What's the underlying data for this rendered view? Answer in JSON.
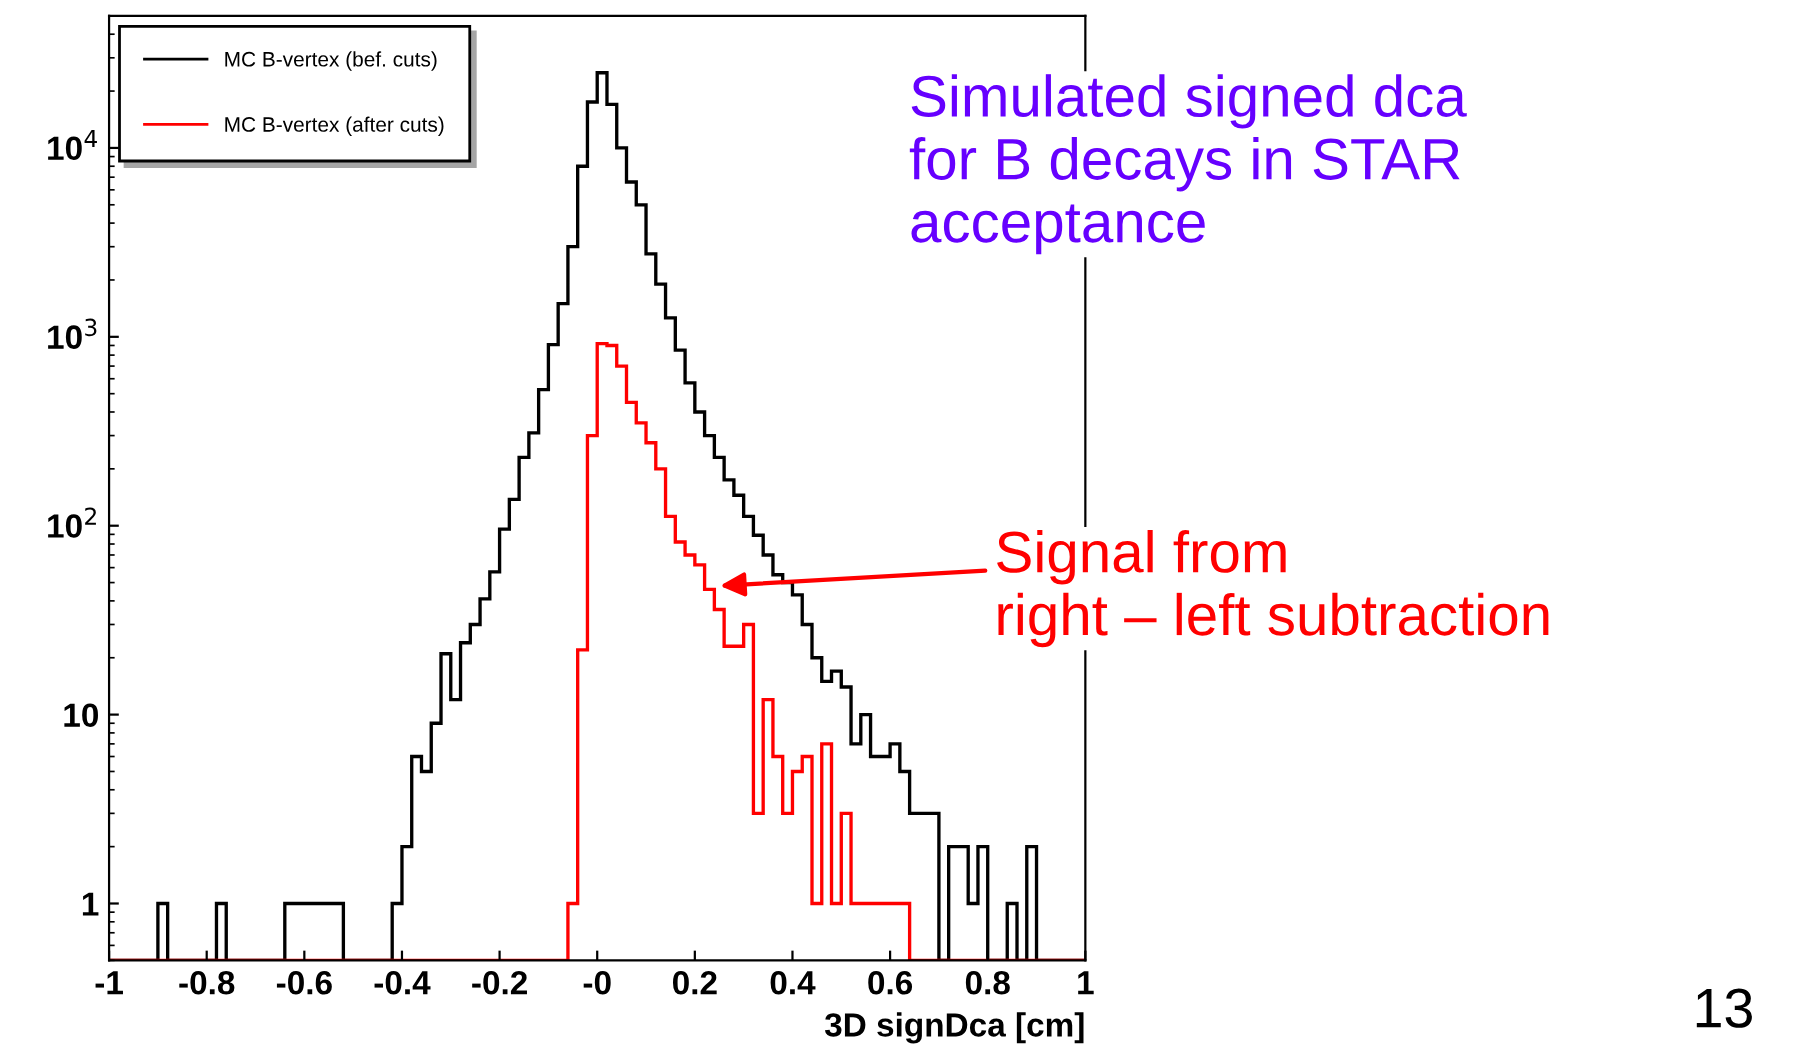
{
  "chart_data": {
    "type": "histogram",
    "xlabel": "3D signDca [cm]",
    "bins": [
      -1,
      -0.98,
      -0.96,
      -0.94,
      -0.92,
      -0.9,
      -0.88,
      -0.86,
      -0.84,
      -0.82,
      -0.8,
      -0.78,
      -0.76,
      -0.74,
      -0.72,
      -0.7,
      -0.68,
      -0.66,
      -0.64,
      -0.62,
      -0.6,
      -0.58,
      -0.56,
      -0.54,
      -0.52,
      -0.5,
      -0.48,
      -0.46,
      -0.44,
      -0.42,
      -0.4,
      -0.38,
      -0.36,
      -0.34,
      -0.32,
      -0.3,
      -0.28,
      -0.26,
      -0.24,
      -0.22,
      -0.2,
      -0.18,
      -0.16,
      -0.14,
      -0.12,
      -0.1,
      -0.08,
      -0.06,
      -0.04,
      -0.02,
      0,
      0.02,
      0.04,
      0.06,
      0.08,
      0.1,
      0.12,
      0.14,
      0.16,
      0.18,
      0.2,
      0.22,
      0.24,
      0.26,
      0.28,
      0.3,
      0.32,
      0.34,
      0.36,
      0.38,
      0.4,
      0.42,
      0.44,
      0.46,
      0.48,
      0.5,
      0.52,
      0.54,
      0.56,
      0.58,
      0.6,
      0.62,
      0.64,
      0.66,
      0.68,
      0.7,
      0.72,
      0.74,
      0.76,
      0.78,
      0.8,
      0.82,
      0.84,
      0.86,
      0.88,
      0.9,
      0.92,
      0.94,
      0.96,
      0.98,
      1
    ],
    "series": [
      {
        "name": "MC B-vertex (bef. cuts)",
        "color": "#000000",
        "values": [
          null,
          null,
          null,
          null,
          null,
          1,
          null,
          null,
          null,
          null,
          null,
          1,
          null,
          null,
          null,
          null,
          null,
          null,
          1,
          1,
          1,
          1,
          1,
          1,
          null,
          null,
          null,
          null,
          null,
          1,
          2,
          6,
          5,
          9,
          21,
          12,
          24,
          30,
          41,
          57,
          96,
          138,
          230,
          310,
          525,
          910,
          1500,
          3000,
          8000,
          17500,
          25000,
          17000,
          10000,
          6600,
          5000,
          2750,
          1900,
          1260,
          850,
          570,
          400,
          300,
          230,
          175,
          145,
          112,
          89,
          70,
          55,
          50,
          43,
          30,
          20,
          15,
          17,
          14,
          7,
          10,
          6,
          6,
          7,
          5,
          3,
          3,
          3,
          null,
          2,
          2,
          1,
          2,
          null,
          null,
          1,
          null,
          2,
          null,
          null,
          null,
          null,
          null
        ]
      },
      {
        "name": "MC B-vertex (after cuts)",
        "color": "#ff0000",
        "values": [
          null,
          null,
          null,
          null,
          null,
          null,
          null,
          null,
          null,
          null,
          null,
          null,
          null,
          null,
          null,
          null,
          null,
          null,
          null,
          null,
          null,
          null,
          null,
          null,
          null,
          null,
          null,
          null,
          null,
          null,
          null,
          null,
          null,
          null,
          null,
          null,
          null,
          null,
          null,
          null,
          null,
          null,
          null,
          null,
          null,
          null,
          null,
          1,
          22,
          300,
          920,
          900,
          700,
          450,
          350,
          275,
          200,
          112,
          82,
          70,
          62,
          46,
          36,
          23,
          23,
          30,
          3,
          12,
          6,
          3,
          5,
          6,
          1,
          7,
          1,
          3,
          1,
          1,
          1,
          1,
          1,
          1,
          null,
          null,
          null,
          null,
          null,
          null,
          null,
          null,
          null,
          null,
          null,
          null,
          null,
          null,
          null,
          null,
          null,
          null
        ]
      }
    ],
    "log": "y",
    "xlim": [
      -1,
      1
    ],
    "ylim": [
      0.5,
      50000
    ],
    "xticks": [
      -1,
      -0.8,
      -0.6,
      -0.4,
      -0.2,
      {
        "value": 0,
        "label": "-0"
      },
      0.2,
      0.4,
      0.6,
      0.8,
      1
    ],
    "yticks": [
      1,
      10,
      {
        "value": 100,
        "label": "10$^{2}$"
      },
      {
        "value": 1000,
        "label": "10$^{3}$"
      },
      {
        "value": 10000,
        "label": "10$^{4}$"
      }
    ],
    "grid": false,
    "legend": "top left",
    "annotations": [
      "Simulated signed dca\nfor B decays in STAR\nacceptance",
      "Signal from\nright – left subtraction",
      "13"
    ]
  }
}
